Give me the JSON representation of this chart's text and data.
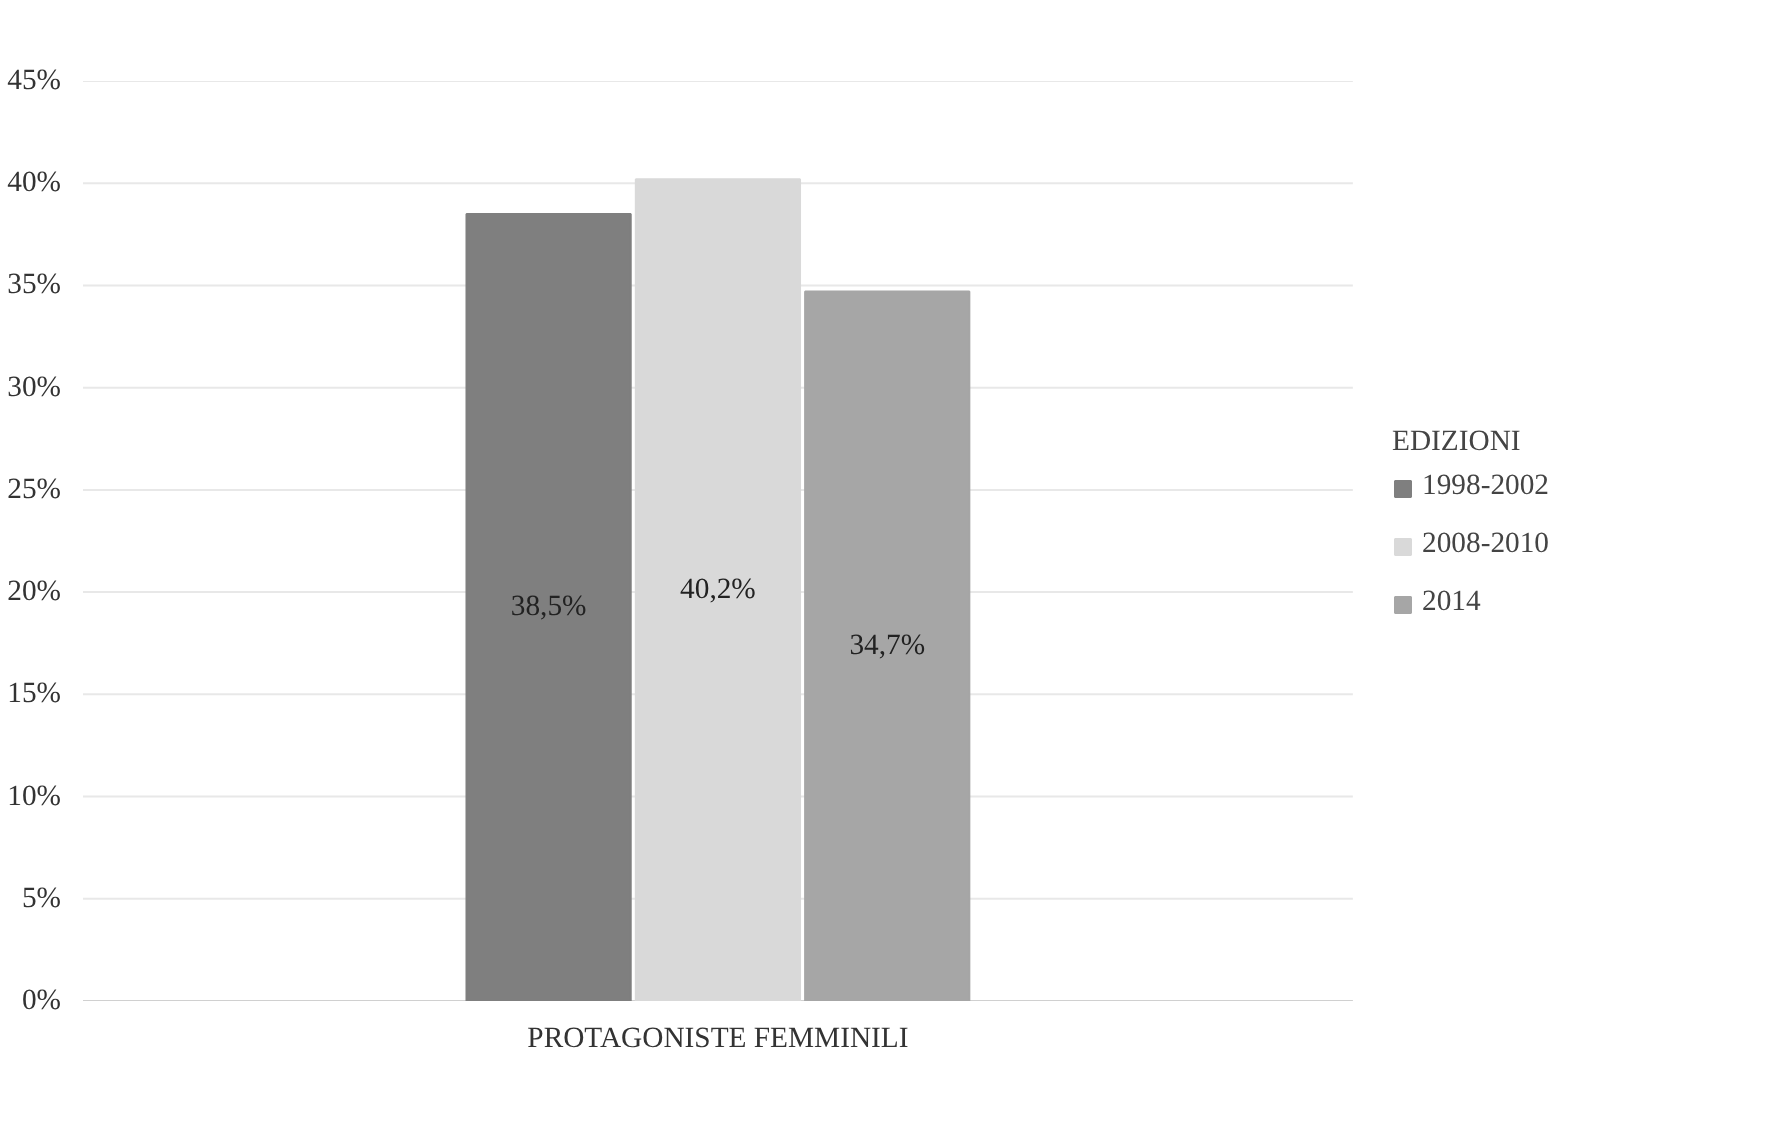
{
  "chart_data": {
    "type": "bar",
    "categories": [
      "PROTAGONISTE FEMMINILI"
    ],
    "legend_title": "EDIZIONI",
    "series": [
      {
        "name": "1998-2002",
        "color": "#7f7f7f",
        "values": [
          38.5
        ],
        "value_labels": [
          "38,5%"
        ]
      },
      {
        "name": "2008-2010",
        "color": "#d9d9d9",
        "values": [
          40.2
        ],
        "value_labels": [
          "40,2%"
        ]
      },
      {
        "name": "2014",
        "color": "#a6a6a6",
        "values": [
          34.7
        ],
        "value_labels": [
          "34,7%"
        ]
      }
    ],
    "ylim": [
      0,
      45
    ],
    "yticks": [
      {
        "value": 0,
        "label": "0%"
      },
      {
        "value": 5,
        "label": "5%"
      },
      {
        "value": 10,
        "label": "10%"
      },
      {
        "value": 15,
        "label": "15%"
      },
      {
        "value": 20,
        "label": "20%"
      },
      {
        "value": 25,
        "label": "25%"
      },
      {
        "value": 30,
        "label": "30%"
      },
      {
        "value": 35,
        "label": "35%"
      },
      {
        "value": 40,
        "label": "40%"
      },
      {
        "value": 45,
        "label": "45%"
      }
    ],
    "grid": "y",
    "legend": "right"
  }
}
